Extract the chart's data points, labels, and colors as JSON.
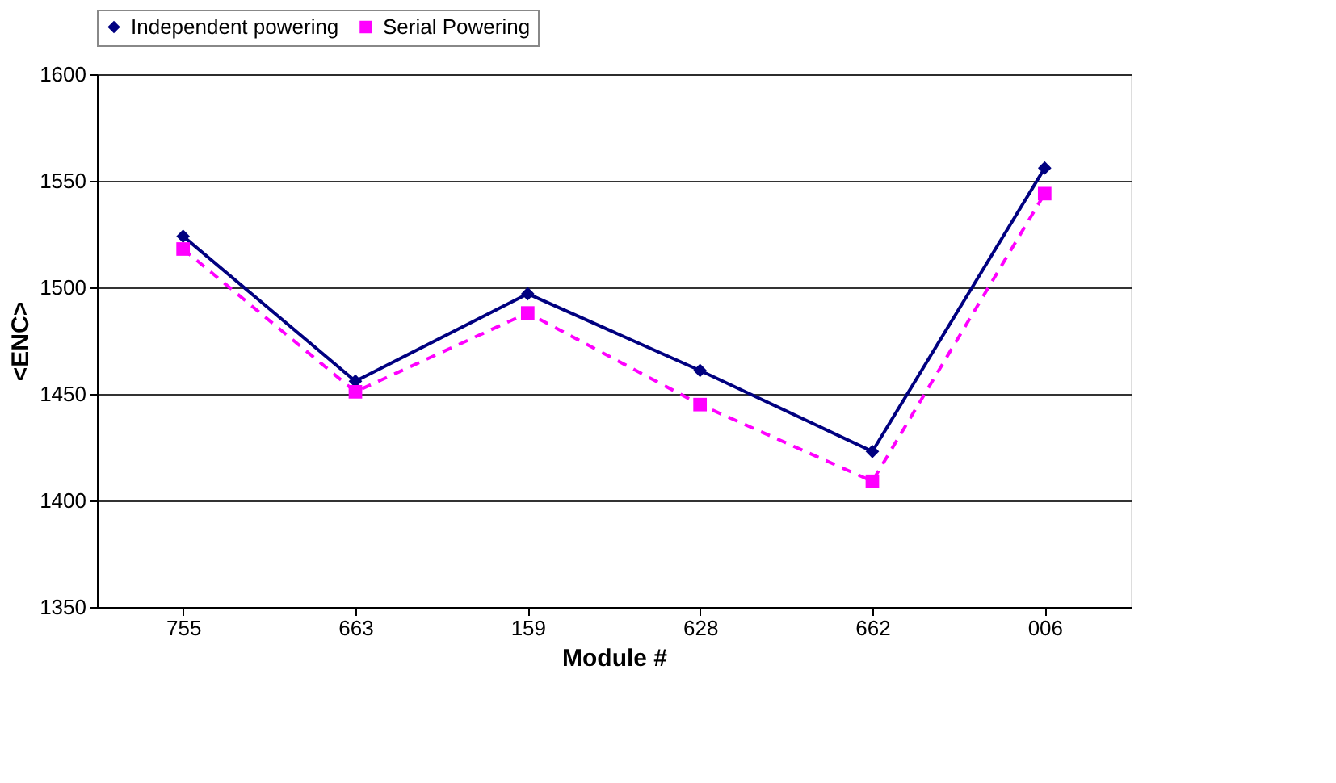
{
  "chart_data": {
    "type": "line",
    "xlabel": "Module #",
    "ylabel": "<ENC>",
    "categories": [
      "755",
      "663",
      "159",
      "628",
      "662",
      "006"
    ],
    "series": [
      {
        "name": "Independent powering",
        "color": "#000080",
        "marker": "diamond",
        "line_style": "solid",
        "values": [
          1524,
          1456,
          1497,
          1461,
          1423,
          1556
        ]
      },
      {
        "name": "Serial Powering",
        "color": "#ff00ff",
        "marker": "square",
        "line_style": "dashed",
        "values": [
          1518,
          1451,
          1488,
          1445,
          1409,
          1544
        ]
      }
    ],
    "ylim": [
      1350,
      1600
    ],
    "yticks": [
      1350,
      1400,
      1450,
      1500,
      1550,
      1600
    ],
    "grid": "y",
    "legend": "top"
  }
}
